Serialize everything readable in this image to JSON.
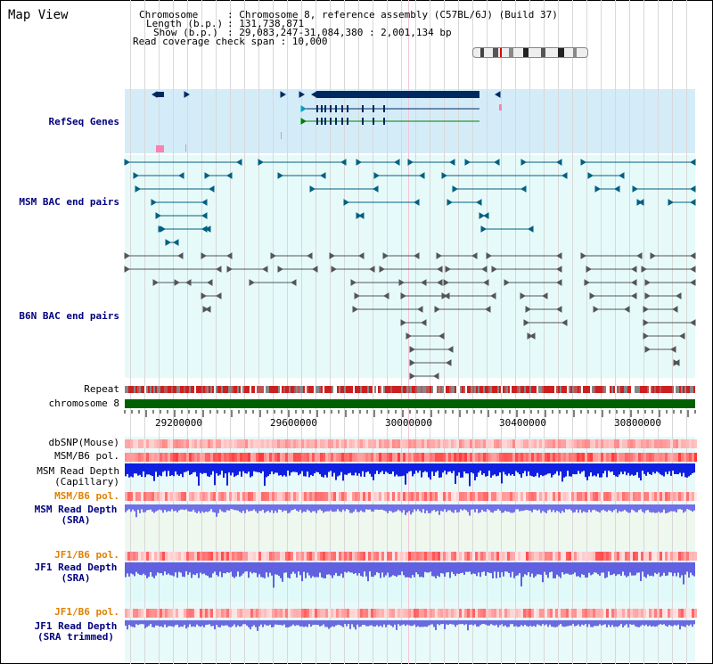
{
  "title": "Map View",
  "header": {
    "chromosome_key": "Chromosome",
    "chromosome_val": ": Chromosome 8, reference assembly (C57BL/6J) (Build 37)",
    "length_key": "Length (b.p.)",
    "length_val": ": 131,738,871",
    "show_key": "Show (b.p.)",
    "show_val": ": 29,083,247-31,084,380 : 2,001,134 bp",
    "coverage_line": "Read coverage check span : 10,000"
  },
  "tracks": {
    "refseq": "RefSeq Genes",
    "msm_bac": "MSM BAC end pairs",
    "b6n_bac": "B6N BAC end pairs",
    "repeat": "Repeat",
    "chromosome": "chromosome 8",
    "dbsnp": "dbSNP(Mouse)",
    "msm_b6_pol_1": "MSM/B6 pol.",
    "msm_read_depth_cap_1": "MSM Read Depth",
    "msm_read_depth_cap_2": "(Capillary)",
    "msm_b6_pol_2": "MSM/B6 pol.",
    "msm_read_depth_sra_1": "MSM Read Depth",
    "msm_read_depth_sra_2": "(SRA)",
    "jf1_b6_pol_1": "JF1/B6 pol.",
    "jf1_read_depth_sra_1": "JF1 Read Depth",
    "jf1_read_depth_sra_2": "(SRA)",
    "jf1_b6_pol_2": "JF1/B6 pol.",
    "jf1_read_depth_trim_1": "JF1 Read Depth",
    "jf1_read_depth_trim_2": "(SRA trimmed)"
  },
  "axis_ticks": [
    "29200000",
    "29600000",
    "30000000",
    "30400000",
    "30800000"
  ],
  "colors": {
    "refseq_band": "#d4ecf8",
    "bac_band": "#e6fafa",
    "gene_color": "#002860",
    "msm_color": "#006080",
    "b6n_color": "#555555",
    "chromosome": "#006000",
    "label_blue": "#000080",
    "label_orange": "#e08000"
  }
}
